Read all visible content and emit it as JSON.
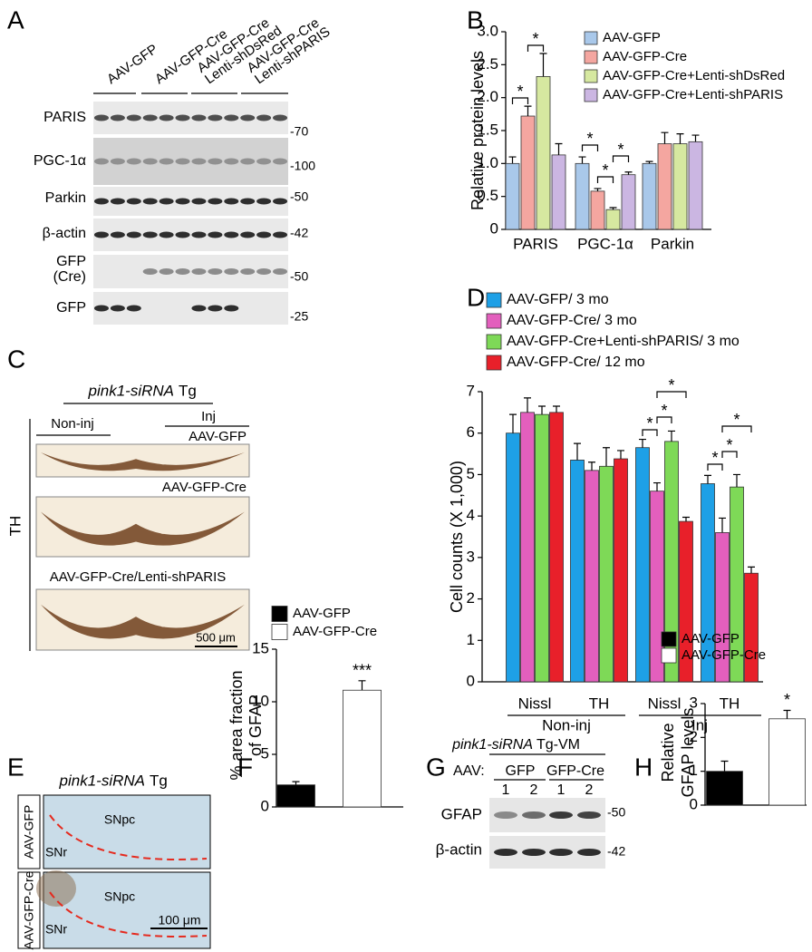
{
  "figure": {
    "panel_labels": [
      "A",
      "B",
      "C",
      "D",
      "E",
      "F",
      "G",
      "H"
    ],
    "A": {
      "lanes": [
        [
          "AAV-GFP"
        ],
        [
          "AAV-GFP-Cre"
        ],
        [
          "AAV-GFP-Cre",
          "Lenti-shDsRed"
        ],
        [
          "AAV-GFP-Cre",
          "Lenti-shPARIS"
        ]
      ],
      "rows": [
        [
          "PARIS"
        ],
        [
          "PGC-1α"
        ],
        [
          "Parkin"
        ],
        [
          "β-actin"
        ],
        [
          "GFP",
          "(Cre)"
        ],
        [
          "GFP"
        ]
      ],
      "markers": [
        "-70",
        "-100",
        "-50",
        "-42",
        "-50",
        "-25"
      ]
    },
    "C": {
      "title": [
        "pink1-siRNA",
        "Tg"
      ],
      "groups": [
        "Non-inj",
        "Inj"
      ],
      "images": [
        "AAV-GFP",
        "AAV-GFP-Cre",
        "AAV-GFP-Cre/Lenti-shPARIS"
      ],
      "stain": "TH",
      "scale_bar": "500 μm"
    },
    "E": {
      "title": [
        "pink1-siRNA",
        "Tg"
      ],
      "rows": [
        "AAV-GFP",
        "AAV-GFP-Cre"
      ],
      "regions": [
        [
          "SNpc",
          "SNr"
        ],
        [
          "SNpc",
          "SNr"
        ]
      ],
      "scale_bar": "100 μm"
    },
    "G": {
      "title": [
        "pink1-siRNA",
        "Tg-VM"
      ],
      "prefix": "AAV:",
      "groups": [
        "GFP",
        "GFP-Cre"
      ],
      "lanes": [
        "1",
        "2",
        "1",
        "2"
      ],
      "rows": [
        "GFAP",
        "β-actin"
      ],
      "markers": [
        "-50",
        "-42"
      ]
    }
  },
  "chart_data": [
    {
      "type": "bar",
      "ylabel": "Relative protein levels",
      "categories": [
        "PARIS",
        "PGC-1α",
        "Parkin"
      ],
      "series": [
        {
          "name": "AAV-GFP",
          "color": "#a9c8ea",
          "values": [
            1.0,
            1.0,
            1.0
          ],
          "errors": [
            0.1,
            0.1,
            0.03
          ]
        },
        {
          "name": "AAV-GFP-Cre",
          "color": "#f4a6a0",
          "values": [
            1.72,
            0.58,
            1.3
          ],
          "errors": [
            0.15,
            0.04,
            0.17
          ]
        },
        {
          "name": "AAV-GFP-Cre+Lenti-shDsRed",
          "color": "#d6e8a0",
          "values": [
            2.32,
            0.3,
            1.3
          ],
          "errors": [
            0.35,
            0.03,
            0.15
          ]
        },
        {
          "name": "AAV-GFP-Cre+Lenti-shPARIS",
          "color": "#cbb6e2",
          "values": [
            1.13,
            0.83,
            1.33
          ],
          "errors": [
            0.17,
            0.04,
            0.1
          ]
        }
      ],
      "ylim": [
        0,
        3
      ],
      "yticks": [
        0,
        0.5,
        {
          "value": 1,
          "label": "1.0"
        },
        1.5,
        {
          "value": 2,
          "label": "2.0"
        },
        2.5,
        {
          "value": 3,
          "label": "3.0"
        }
      ],
      "annotations": [
        "*",
        "*",
        "*",
        "*",
        "*"
      ]
    },
    {
      "type": "bar",
      "ylabel": "Cell counts (X 1,000)",
      "categories": [
        "Nissl",
        "TH",
        "Nissl",
        "TH"
      ],
      "group_labels": [
        "Non-inj",
        "Inj"
      ],
      "series": [
        {
          "name": "AAV-GFP/ 3 mo",
          "color": "#1ea0e6",
          "values": [
            6.0,
            5.35,
            5.65,
            4.78
          ],
          "errors": [
            0.45,
            0.4,
            0.2,
            0.2
          ]
        },
        {
          "name": "AAV-GFP-Cre/ 3 mo",
          "color": "#e35fbd",
          "values": [
            6.5,
            5.1,
            4.6,
            3.6
          ],
          "errors": [
            0.35,
            0.2,
            0.2,
            0.35
          ]
        },
        {
          "name": "AAV-GFP-Cre+Lenti-shPARIS/ 3 mo",
          "color": "#7ed957",
          "values": [
            6.45,
            5.2,
            5.8,
            4.7
          ],
          "errors": [
            0.2,
            0.45,
            0.25,
            0.3
          ]
        },
        {
          "name": "AAV-GFP-Cre/ 12 mo",
          "color": "#e8202a",
          "values": [
            6.5,
            5.38,
            3.87,
            2.62
          ],
          "errors": [
            0.15,
            0.2,
            0.1,
            0.15
          ]
        }
      ],
      "ylim": [
        0,
        7
      ],
      "yticks": [
        0,
        1,
        2,
        3,
        4,
        5,
        6,
        7
      ],
      "annotations": [
        "*",
        "*",
        "*",
        "*",
        "*",
        "*"
      ]
    },
    {
      "type": "bar",
      "ylabel": [
        "% area fraction",
        "of GFAP"
      ],
      "series": [
        {
          "name": "AAV-GFP",
          "color": "#000000",
          "values": [
            2.1
          ],
          "errors": [
            0.3
          ]
        },
        {
          "name": "AAV-GFP-Cre",
          "color": "#ffffff",
          "values": [
            11.1
          ],
          "errors": [
            0.9
          ]
        }
      ],
      "ylim": [
        0,
        15
      ],
      "yticks": [
        0,
        5,
        10,
        15
      ],
      "annotations": [
        "***"
      ]
    },
    {
      "type": "bar",
      "ylabel": [
        "Relative",
        "GFAP levels"
      ],
      "series": [
        {
          "name": "AAV-GFP",
          "color": "#000000",
          "values": [
            1.0
          ],
          "errors": [
            0.3
          ]
        },
        {
          "name": "AAV-GFP-Cre",
          "color": "#ffffff",
          "values": [
            2.55
          ],
          "errors": [
            0.25
          ]
        }
      ],
      "ylim": [
        0,
        3
      ],
      "yticks": [
        0,
        1,
        2,
        3
      ],
      "annotations": [
        "*"
      ]
    }
  ]
}
